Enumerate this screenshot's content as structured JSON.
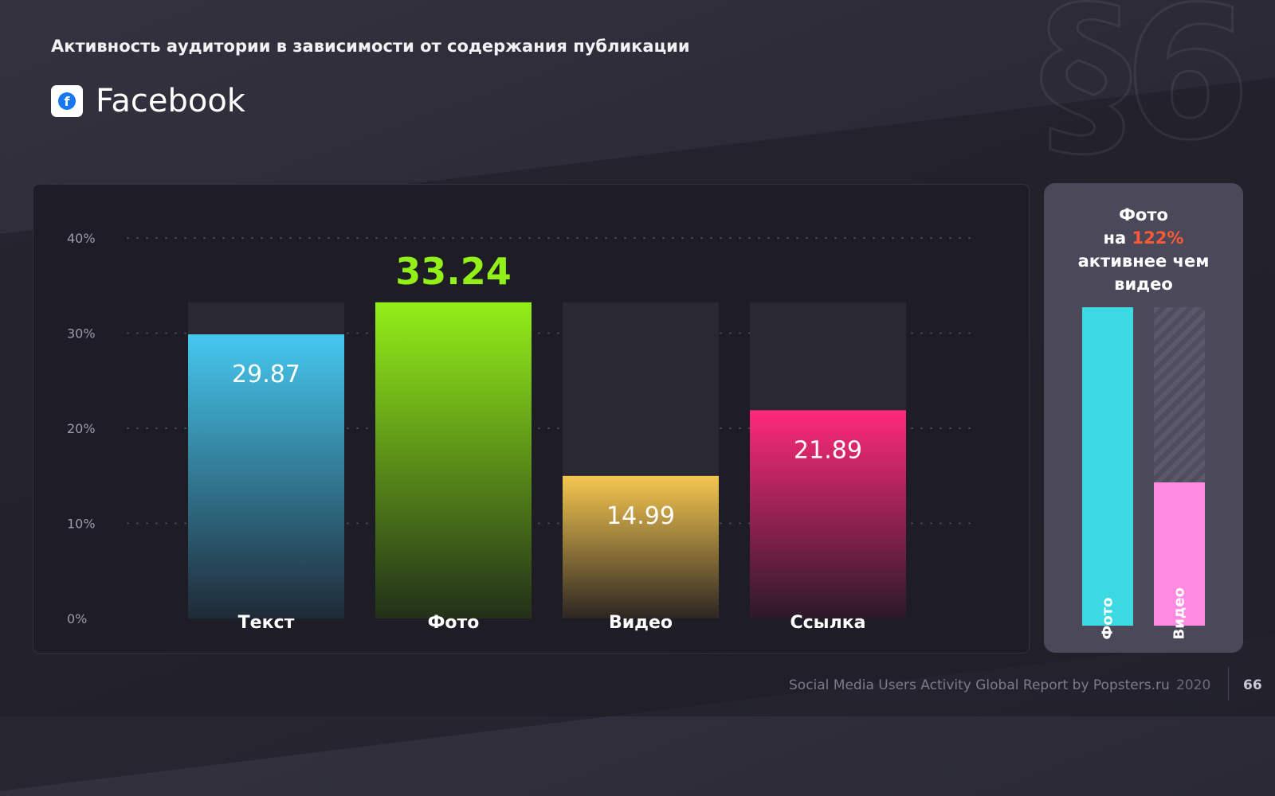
{
  "watermark": "§6",
  "subtitle": "Активность аудитории в зависимости от содержания публикации",
  "platform": {
    "logo_letter": "f",
    "name": "Facebook"
  },
  "chart_data": {
    "type": "bar",
    "categories": [
      "Текст",
      "Фото",
      "Видео",
      "Ссылка"
    ],
    "values": [
      29.87,
      33.24,
      14.99,
      21.89
    ],
    "value_labels": [
      "29.87",
      "33.24",
      "14.99",
      "21.89"
    ],
    "ylim": [
      0,
      40
    ],
    "yticks": [
      0,
      10,
      20,
      30,
      40
    ],
    "ytick_labels": [
      "0%",
      "10%",
      "20%",
      "30%",
      "40%"
    ],
    "grid": true,
    "colors": [
      [
        "#45c8f0",
        "#1f2a36"
      ],
      [
        "#93ef18",
        "#233019"
      ],
      [
        "#f5c64f",
        "#2c2623"
      ],
      [
        "#ff2a7a",
        "#2b1a28"
      ]
    ],
    "highlight_index": 1,
    "highlight_color": "#93ef18"
  },
  "comparison": {
    "line1": "Фото",
    "line2_prefix": "на",
    "percent": "122%",
    "line3": "активнее чем",
    "line4": "видео",
    "bars": [
      {
        "label": "Фото",
        "value": 33.24,
        "color": "#3dd9e2"
      },
      {
        "label": "Видео",
        "value": 14.99,
        "color": "#ff8ae1"
      }
    ]
  },
  "footer": {
    "report": "Social Media Users Activity Global Report by Popsters.ru",
    "year": "2020",
    "page": "66"
  }
}
